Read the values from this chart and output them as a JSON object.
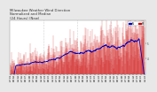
{
  "title_text": "Milwaukee Weather Wind Direction\nNormalized and Median\n(24 Hours) (New)",
  "bg_color": "#e8e8e8",
  "plot_bg_color": "#ffffff",
  "bar_color": "#cc0000",
  "median_color": "#0000bb",
  "grid_color": "#aaaaaa",
  "text_color": "#333333",
  "ylim": [
    3.0,
    6.5
  ],
  "n_points": 730,
  "title_fontsize": 2.8,
  "tick_fontsize": 1.8,
  "ytick_vals": [
    4,
    5
  ],
  "legend_colors": [
    "#0000bb",
    "#cc0000"
  ],
  "seed": 12
}
